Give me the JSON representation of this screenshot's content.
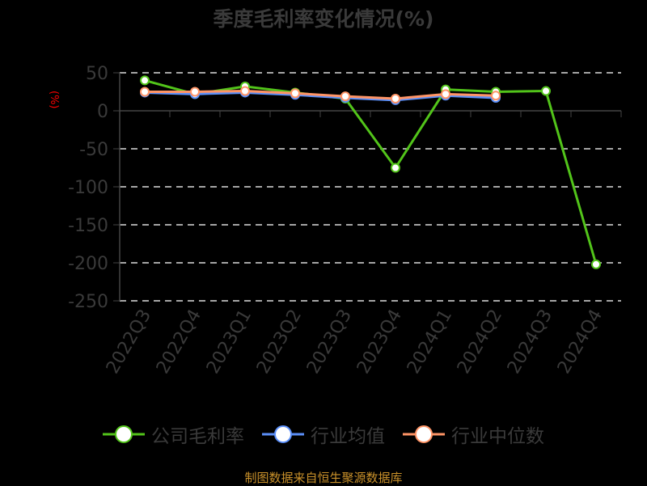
{
  "chart_data": {
    "type": "line",
    "title": "季度毛利率变化情况(%)",
    "xlabel": "",
    "ylabel": "(%)",
    "ylim": [
      -250,
      50
    ],
    "yticks": [
      50,
      0,
      -50,
      -100,
      -150,
      -200,
      -250
    ],
    "grid": true,
    "legend_position": "bottom",
    "categories": [
      "2022Q3",
      "2022Q4",
      "2023Q1",
      "2023Q2",
      "2023Q3",
      "2023Q4",
      "2024Q1",
      "2024Q2",
      "2024Q3",
      "2024Q4"
    ],
    "series": [
      {
        "name": "公司毛利率",
        "color": "#52c41a",
        "values": [
          40,
          22,
          32,
          24,
          16,
          -75,
          28,
          25,
          26,
          -202
        ]
      },
      {
        "name": "行业均值",
        "color": "#5b8ff9",
        "values": [
          24,
          22,
          24,
          21,
          17,
          14,
          20,
          17,
          null,
          null
        ]
      },
      {
        "name": "行业中位数",
        "color": "#ff9466",
        "values": [
          25,
          25,
          26,
          23,
          19,
          16,
          22,
          20,
          null,
          null
        ]
      }
    ]
  },
  "title": "季度毛利率变化情况(%)",
  "y_unit": "(%)",
  "legend": [
    {
      "label": "公司毛利率",
      "color": "#52c41a"
    },
    {
      "label": "行业均值",
      "color": "#5b8ff9"
    },
    {
      "label": "行业中位数",
      "color": "#ff9466"
    }
  ],
  "source": "制图数据来自恒生聚源数据库"
}
